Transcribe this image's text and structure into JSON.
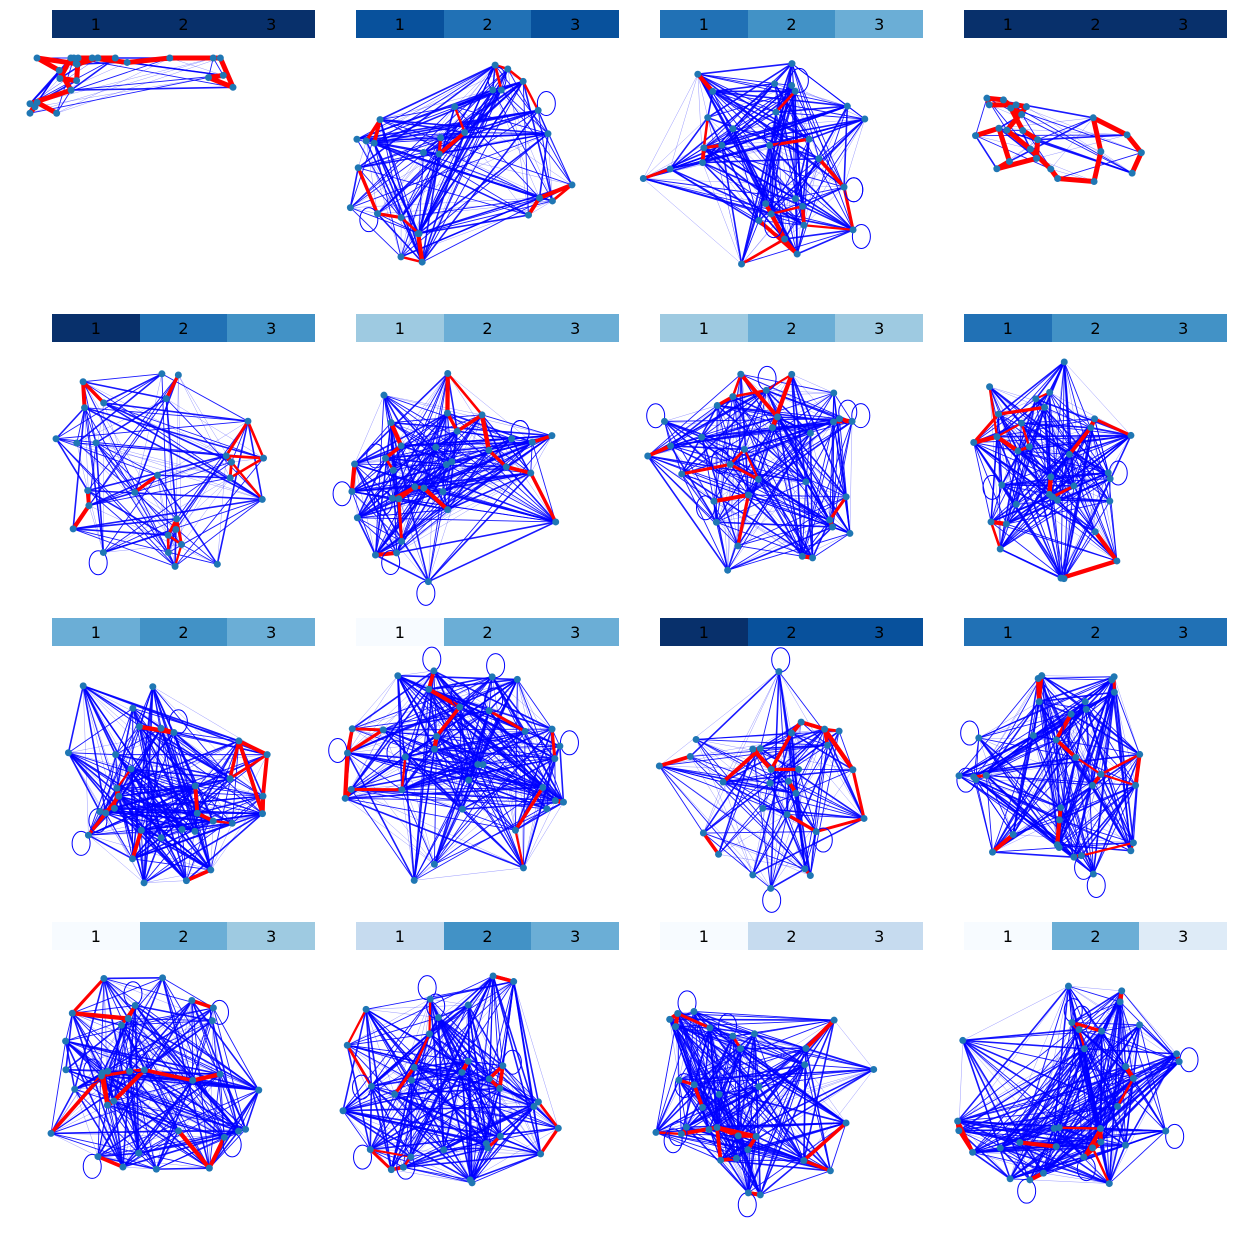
{
  "blues_scale": [
    "#f7fbff",
    "#deebf7",
    "#c6dbef",
    "#9ecae1",
    "#6baed6",
    "#4292c6",
    "#2171b5",
    "#08519c",
    "#08306b"
  ],
  "edge_colors": {
    "primary": "#ff0000",
    "secondary": "#0000ff"
  },
  "node_color": "#1f77b4",
  "panels": [
    {
      "labels": [
        "1",
        "2",
        "3"
      ],
      "shades": [
        8,
        8,
        8
      ],
      "nodes": 26,
      "density": 0.1,
      "selfloops": 0,
      "chain": true
    },
    {
      "labels": [
        "1",
        "2",
        "3"
      ],
      "shades": [
        7,
        6,
        7
      ],
      "nodes": 28,
      "density": 0.45,
      "selfloops": 3,
      "chain": false
    },
    {
      "labels": [
        "1",
        "2",
        "3"
      ],
      "shades": [
        6,
        5,
        4
      ],
      "nodes": 30,
      "density": 0.5,
      "selfloops": 6,
      "chain": false
    },
    {
      "labels": [
        "1",
        "2",
        "3"
      ],
      "shades": [
        8,
        8,
        8
      ],
      "nodes": 24,
      "density": 0.12,
      "selfloops": 0,
      "chain": true
    },
    {
      "labels": [
        "1",
        "2",
        "3"
      ],
      "shades": [
        8,
        6,
        5
      ],
      "nodes": 28,
      "density": 0.35,
      "selfloops": 1,
      "chain": false
    },
    {
      "labels": [
        "1",
        "2",
        "3"
      ],
      "shades": [
        3,
        4,
        4
      ],
      "nodes": 32,
      "density": 0.55,
      "selfloops": 7,
      "chain": false
    },
    {
      "labels": [
        "1",
        "2",
        "3"
      ],
      "shades": [
        3,
        4,
        3
      ],
      "nodes": 32,
      "density": 0.55,
      "selfloops": 7,
      "chain": false
    },
    {
      "labels": [
        "1",
        "2",
        "3"
      ],
      "shades": [
        6,
        5,
        5
      ],
      "nodes": 32,
      "density": 0.5,
      "selfloops": 3,
      "chain": false
    },
    {
      "labels": [
        "1",
        "2",
        "3"
      ],
      "shades": [
        4,
        5,
        4
      ],
      "nodes": 32,
      "density": 0.55,
      "selfloops": 3,
      "chain": false
    },
    {
      "labels": [
        "1",
        "2",
        "3"
      ],
      "shades": [
        0,
        4,
        4
      ],
      "nodes": 32,
      "density": 0.6,
      "selfloops": 7,
      "chain": false
    },
    {
      "labels": [
        "1",
        "2",
        "3"
      ],
      "shades": [
        8,
        7,
        7
      ],
      "nodes": 28,
      "density": 0.4,
      "selfloops": 3,
      "chain": false
    },
    {
      "labels": [
        "1",
        "2",
        "3"
      ],
      "shades": [
        6,
        6,
        6
      ],
      "nodes": 32,
      "density": 0.55,
      "selfloops": 5,
      "chain": false
    },
    {
      "labels": [
        "1",
        "2",
        "3"
      ],
      "shades": [
        0,
        4,
        3
      ],
      "nodes": 32,
      "density": 0.6,
      "selfloops": 7,
      "chain": false
    },
    {
      "labels": [
        "1",
        "2",
        "3"
      ],
      "shades": [
        2,
        5,
        4
      ],
      "nodes": 32,
      "density": 0.6,
      "selfloops": 7,
      "chain": false
    },
    {
      "labels": [
        "1",
        "2",
        "3"
      ],
      "shades": [
        0,
        2,
        2
      ],
      "nodes": 32,
      "density": 0.6,
      "selfloops": 7,
      "chain": false
    },
    {
      "labels": [
        "1",
        "2",
        "3"
      ],
      "shades": [
        0,
        4,
        1
      ],
      "nodes": 32,
      "density": 0.6,
      "selfloops": 6,
      "chain": false
    }
  ]
}
